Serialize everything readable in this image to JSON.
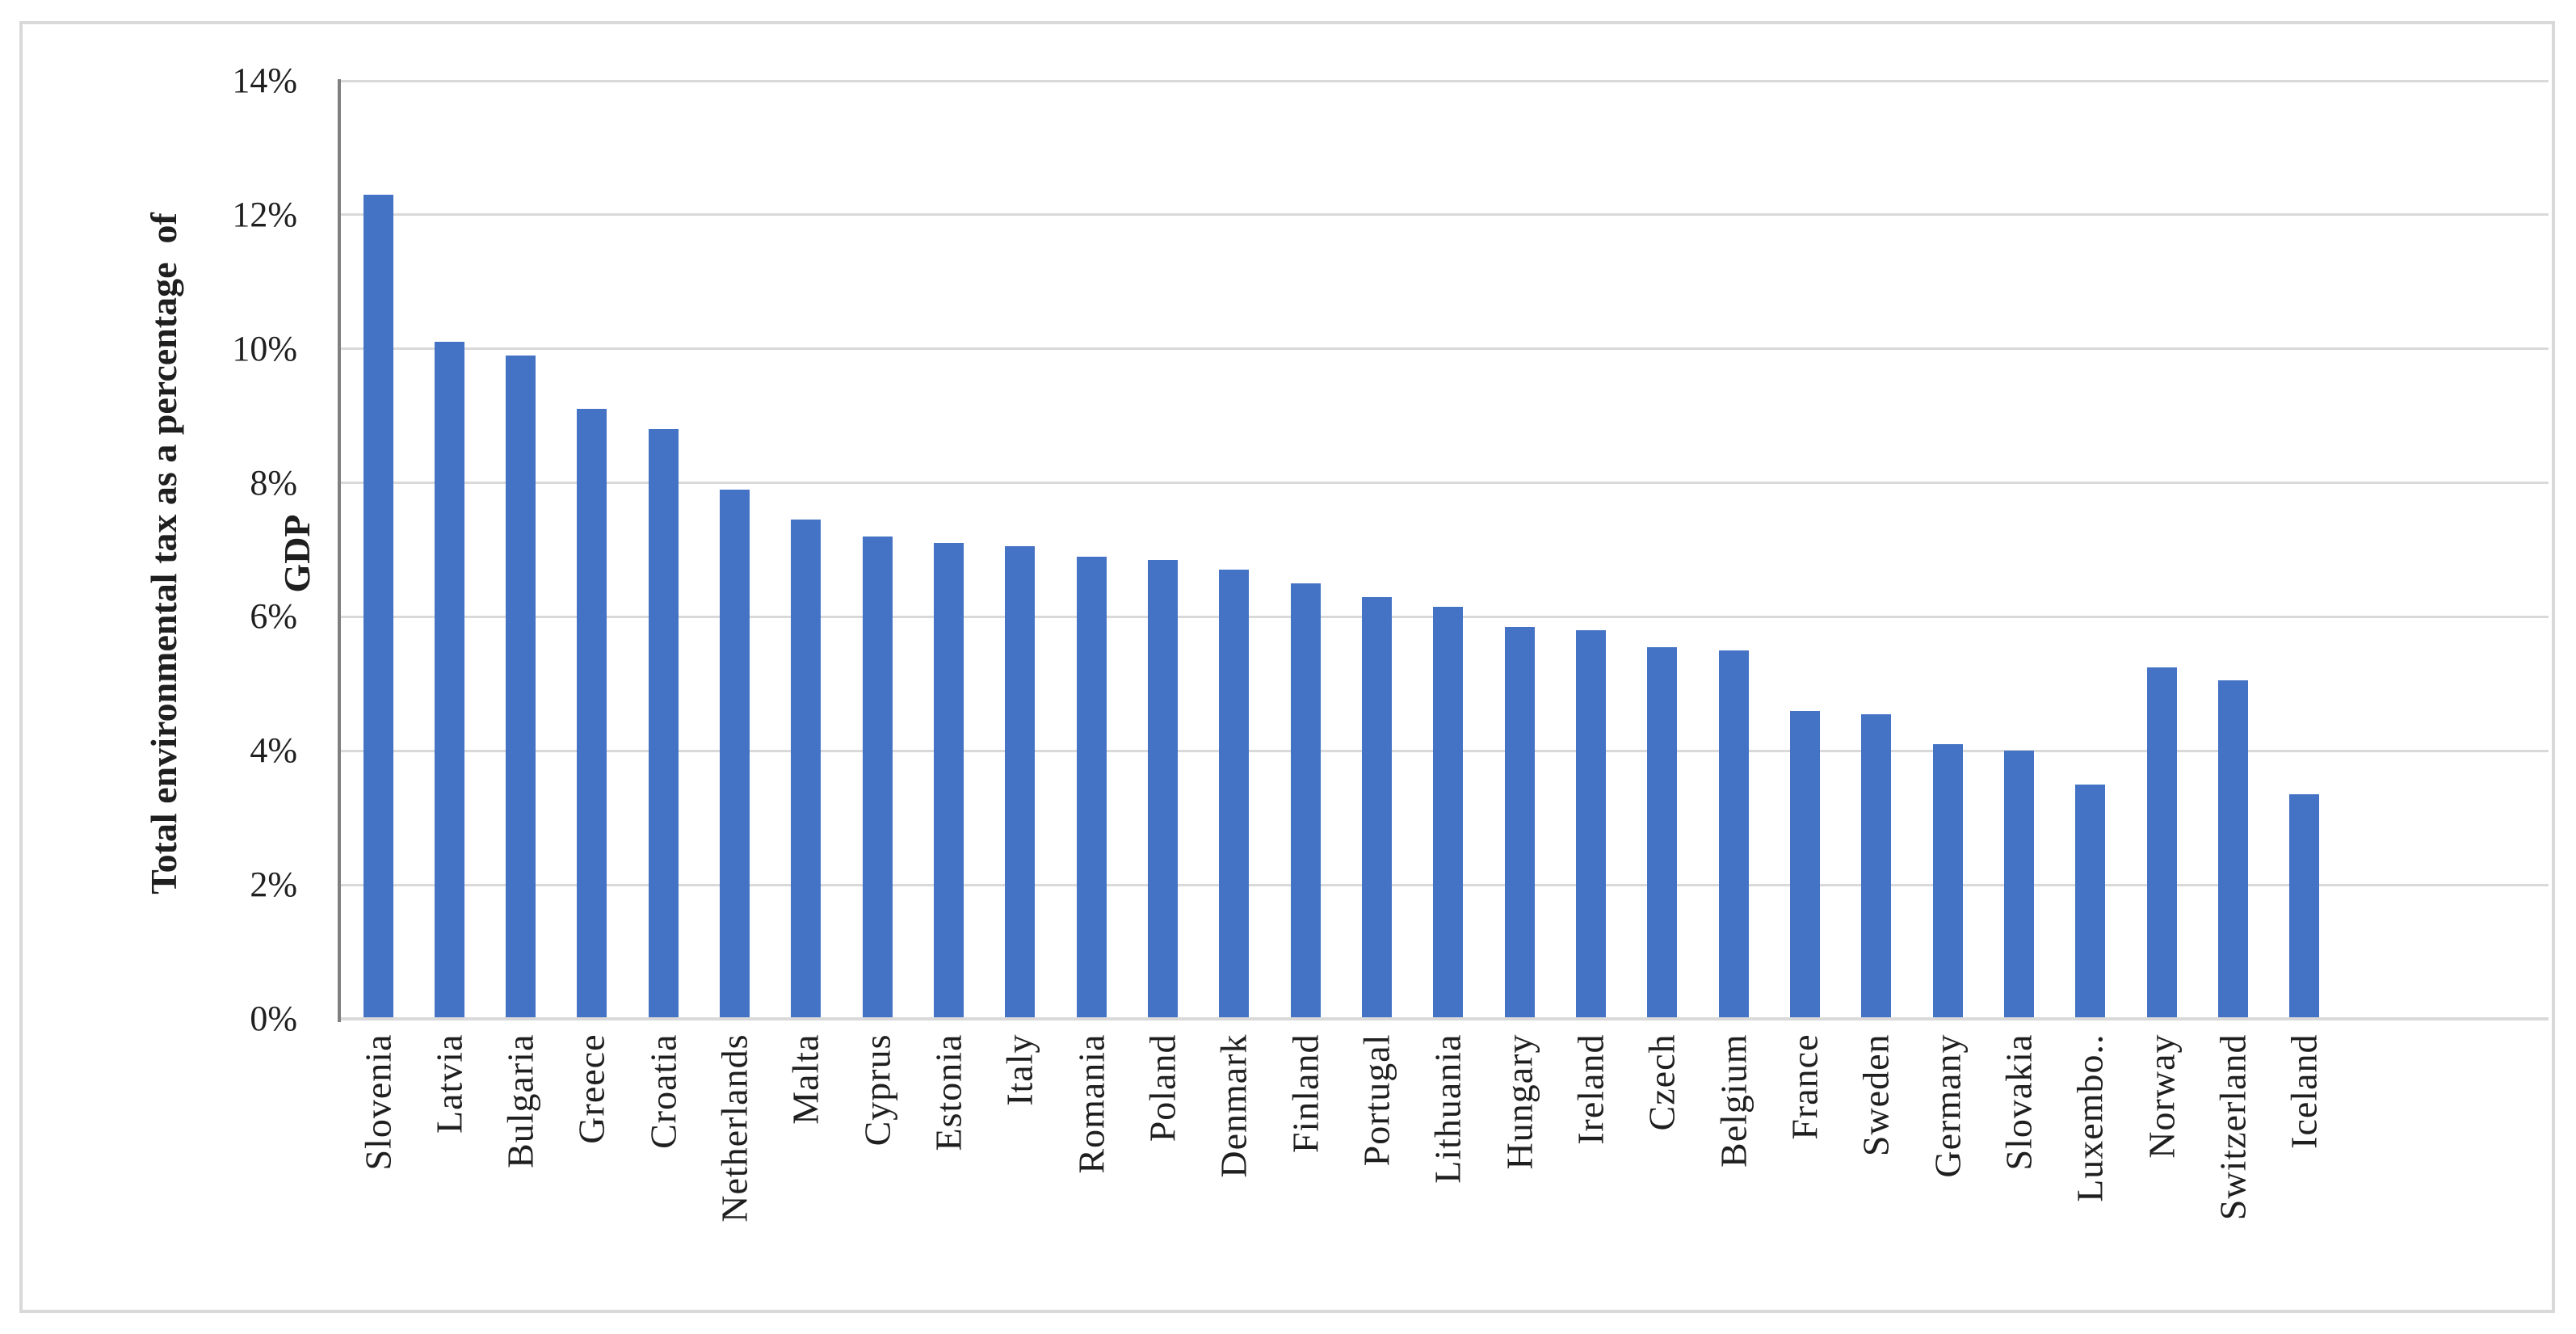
{
  "chart_data": {
    "type": "bar",
    "title": "",
    "ylabel_line1": "Total environmental tax as a percentage  of",
    "ylabel_line2": "GDP",
    "xlabel": "",
    "categories": [
      "Slovenia",
      "Latvia",
      "Bulgaria",
      "Greece",
      "Croatia",
      "Netherlands",
      "Malta",
      "Cyprus",
      "Estonia",
      "Italy",
      "Romania",
      "Poland",
      "Denmark",
      "Finland",
      "Portugal",
      "Lithuania",
      "Hungary",
      "Ireland",
      "Czech",
      "Belgium",
      "France",
      "Sweden",
      "Germany",
      "Slovakia",
      "Luxembo..",
      "Norway",
      "Switzerland",
      "Iceland"
    ],
    "values": [
      12.3,
      10.1,
      9.9,
      9.1,
      8.8,
      7.9,
      7.45,
      7.2,
      7.1,
      7.05,
      6.9,
      6.85,
      6.7,
      6.5,
      6.3,
      6.15,
      5.85,
      5.8,
      5.55,
      5.5,
      4.6,
      4.55,
      4.1,
      4.0,
      3.5,
      5.25,
      5.05,
      3.35
    ],
    "value_unit": "%",
    "ylim": [
      0,
      14
    ],
    "ytick_step": 2,
    "ytick_labels": [
      "0%",
      "2%",
      "4%",
      "6%",
      "8%",
      "10%",
      "12%",
      "14%"
    ],
    "grid": true,
    "legend": "none",
    "colors": {
      "bar": "#4472C4",
      "gridline": "#D9D9D9",
      "figure_border": "#D9D9D9",
      "x_axis_line": "#D9D9D9",
      "y_axis_line": "#808080",
      "text": "#1F1F1F",
      "background": "#FFFFFF"
    }
  }
}
